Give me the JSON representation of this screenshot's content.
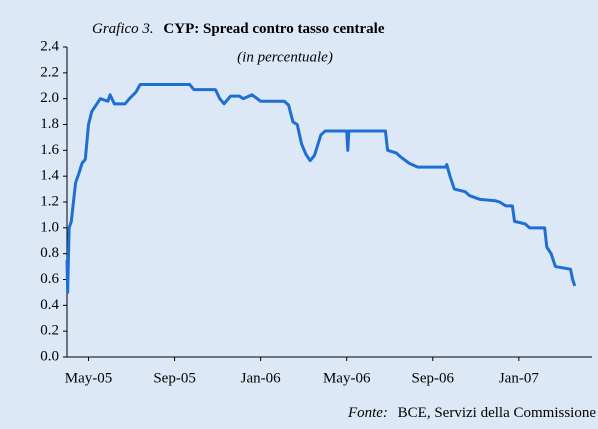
{
  "chart_data": {
    "type": "line",
    "title_label": "Grafico 3.",
    "title": "CYP: Spread contro tasso centrale",
    "subtitle": "(in percentuale)",
    "source_label": "Fonte:",
    "source": "BCE, Servizi della Commissione",
    "x": [
      -1.0,
      -0.97,
      -0.9,
      -0.8,
      -0.7,
      -0.6,
      -0.45,
      -0.3,
      -0.15,
      0,
      0.15,
      0.35,
      0.55,
      0.9,
      1.0,
      1.2,
      1.7,
      1.9,
      2.2,
      2.4,
      4.7,
      4.9,
      5.9,
      6.1,
      6.3,
      6.6,
      7.0,
      7.2,
      7.6,
      8.0,
      9.1,
      9.3,
      9.5,
      9.7,
      9.9,
      10.1,
      10.3,
      10.5,
      10.8,
      11.0,
      12.0,
      12.05,
      12.1,
      13.8,
      13.9,
      14.3,
      14.5,
      14.9,
      15.3,
      16.6,
      16.65,
      16.8,
      17.0,
      17.5,
      17.7,
      18.2,
      18.9,
      19.1,
      19.4,
      19.7,
      19.8,
      20.3,
      20.5,
      21.2,
      21.3,
      21.5,
      21.7,
      22.4,
      22.5,
      22.6
    ],
    "series": [
      {
        "color": "#1f6fd3",
        "values": [
          0.75,
          0.5,
          1.0,
          1.05,
          1.2,
          1.35,
          1.42,
          1.5,
          1.53,
          1.8,
          1.9,
          1.95,
          2.0,
          1.98,
          2.03,
          1.96,
          1.96,
          2.0,
          2.05,
          2.11,
          2.11,
          2.07,
          2.07,
          2.0,
          1.96,
          2.02,
          2.02,
          2.0,
          2.03,
          1.98,
          1.98,
          1.95,
          1.82,
          1.8,
          1.65,
          1.57,
          1.52,
          1.56,
          1.72,
          1.75,
          1.75,
          1.6,
          1.75,
          1.75,
          1.6,
          1.58,
          1.55,
          1.5,
          1.47,
          1.47,
          1.49,
          1.4,
          1.3,
          1.28,
          1.25,
          1.22,
          1.21,
          1.2,
          1.17,
          1.17,
          1.05,
          1.03,
          1.0,
          1.0,
          0.85,
          0.8,
          0.7,
          0.68,
          0.6,
          0.55
        ]
      }
    ],
    "xlim": [
      -1,
      23.4
    ],
    "xticks": [
      {
        "value": 0,
        "label": "May-05"
      },
      {
        "value": 4,
        "label": "Sep-05"
      },
      {
        "value": 8,
        "label": "Jan-06"
      },
      {
        "value": 12,
        "label": "May-06"
      },
      {
        "value": 16,
        "label": "Sep-06"
      },
      {
        "value": 20,
        "label": "Jan-07"
      }
    ],
    "ylim": [
      0,
      2.4
    ],
    "yticks": [
      {
        "value": 0,
        "label": "0.0"
      },
      0.2,
      0.4,
      0.6,
      0.8,
      {
        "value": 1,
        "label": "1.0"
      },
      1.2,
      1.4,
      1.6,
      1.8,
      {
        "value": 2,
        "label": "2.0"
      },
      2.2,
      2.4
    ],
    "grid": false
  }
}
